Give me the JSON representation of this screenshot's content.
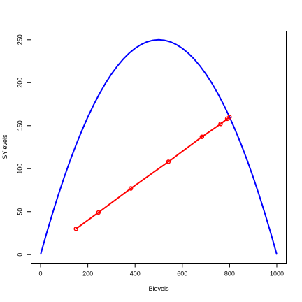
{
  "chart_data": {
    "type": "line",
    "xlabel": "Blevels",
    "ylabel": "SYlevels",
    "xlim": [
      -40,
      1040
    ],
    "ylim": [
      -10,
      260
    ],
    "xticks": [
      0,
      200,
      400,
      600,
      800,
      1000
    ],
    "yticks": [
      0,
      50,
      100,
      150,
      200,
      250
    ],
    "series": [
      {
        "color": "#0000ff",
        "markers": false,
        "x": [
          0,
          25,
          50,
          75,
          100,
          125,
          150,
          175,
          200,
          225,
          250,
          275,
          300,
          325,
          350,
          375,
          400,
          425,
          450,
          475,
          500,
          525,
          550,
          575,
          600,
          625,
          650,
          675,
          700,
          725,
          750,
          775,
          800,
          825,
          850,
          875,
          900,
          925,
          950,
          975,
          1000
        ],
        "values": [
          0,
          24.375,
          47.5,
          69.375,
          90,
          109.375,
          127.5,
          144.375,
          160,
          174.375,
          187.5,
          199.375,
          210,
          219.375,
          227.5,
          234.375,
          240,
          244.375,
          247.5,
          249.375,
          250,
          249.375,
          247.5,
          244.375,
          240,
          234.375,
          227.5,
          219.375,
          210,
          199.375,
          187.5,
          174.375,
          160,
          144.375,
          127.5,
          109.375,
          90,
          69.375,
          47.5,
          24.375,
          0
        ]
      },
      {
        "color": "#ff0000",
        "markers": true,
        "x": [
          150,
          245,
          382,
          541,
          683,
          762,
          790,
          800
        ],
        "values": [
          30,
          49,
          77,
          108,
          137,
          152,
          158,
          160
        ]
      }
    ]
  }
}
